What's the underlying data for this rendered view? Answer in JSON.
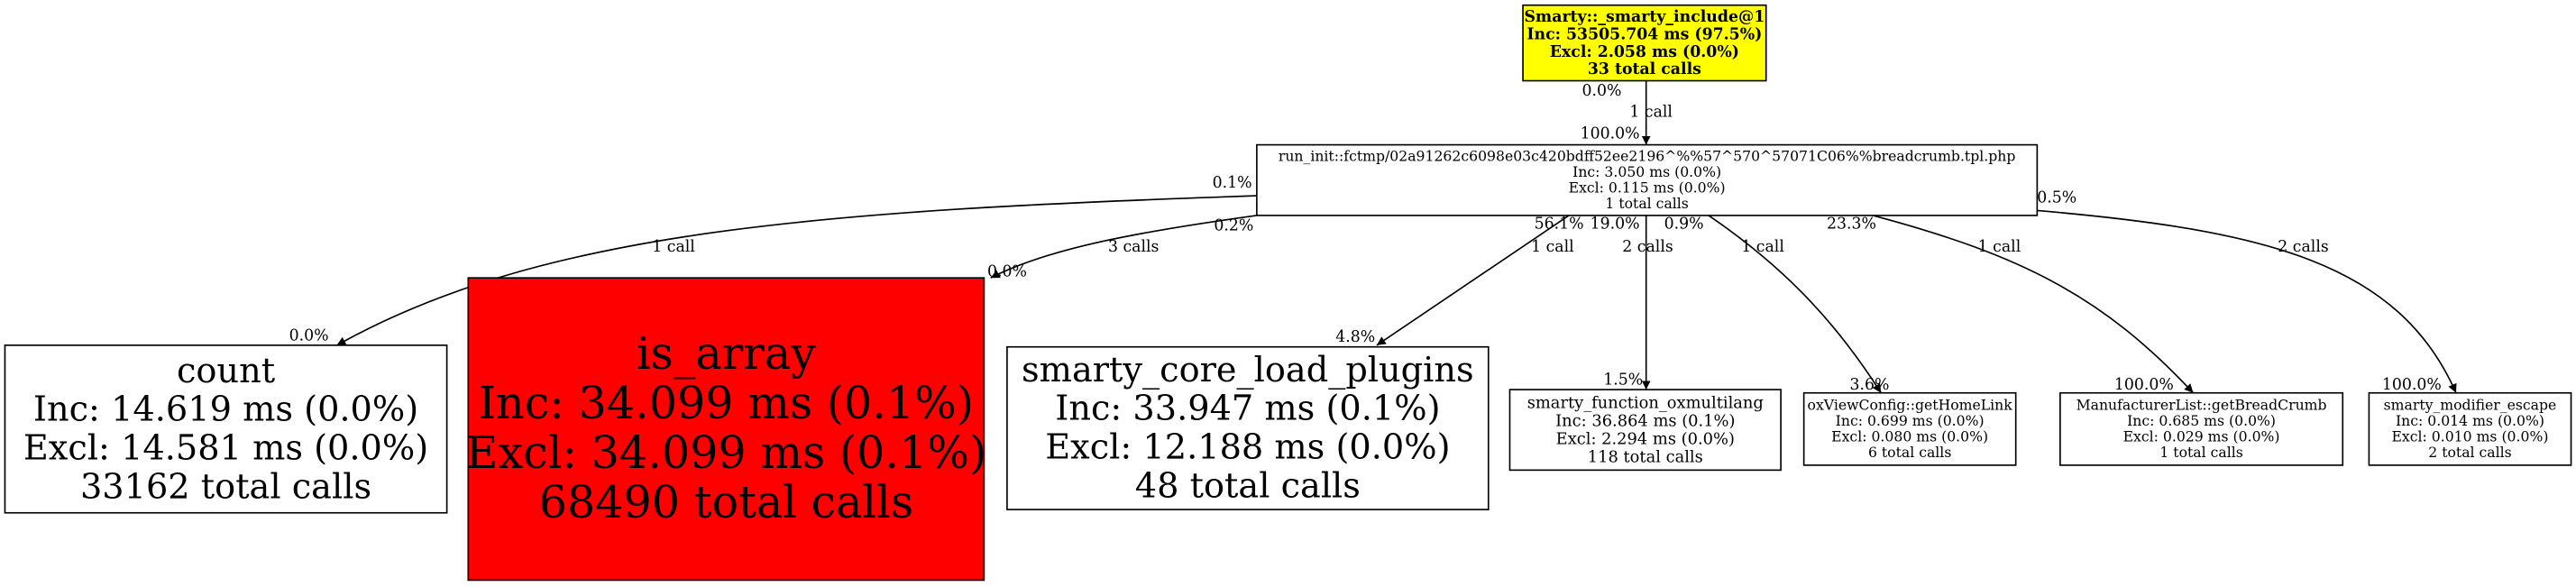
{
  "nodes": [
    {
      "id": "smarty-include",
      "lines": [
        "Smarty::_smarty_include@1",
        "Inc: 53505.704 ms (97.5%)",
        "Excl: 2.058 ms (0.0%)",
        "33 total calls"
      ],
      "fill": "#ffff00"
    },
    {
      "id": "run-init",
      "lines": [
        "run_init::fctmp/02a91262c6098e03c420bdff52ee2196^%%57^570^57071C06%%breadcrumb.tpl.php",
        "Inc: 3.050 ms (0.0%)",
        "Excl: 0.115 ms (0.0%)",
        "1 total calls"
      ],
      "fill": "#ffffff"
    },
    {
      "id": "count",
      "lines": [
        "count",
        "Inc: 14.619 ms (0.0%)",
        "Excl: 14.581 ms (0.0%)",
        "33162 total calls"
      ],
      "fill": "#ffffff"
    },
    {
      "id": "is-array",
      "lines": [
        "is_array",
        "Inc: 34.099 ms (0.1%)",
        "Excl: 34.099 ms (0.1%)",
        "68490 total calls"
      ],
      "fill": "#ff0000"
    },
    {
      "id": "smarty-core-load-plugins",
      "lines": [
        "smarty_core_load_plugins",
        "Inc: 33.947 ms (0.1%)",
        "Excl: 12.188 ms (0.0%)",
        "48 total calls"
      ],
      "fill": "#ffffff"
    },
    {
      "id": "smarty-function-oxmultilang",
      "lines": [
        "smarty_function_oxmultilang",
        "Inc: 36.864 ms (0.1%)",
        "Excl: 2.294 ms (0.0%)",
        "118 total calls"
      ],
      "fill": "#ffffff"
    },
    {
      "id": "oxviewconfig-gethomelink",
      "lines": [
        "oxViewConfig::getHomeLink",
        "Inc: 0.699 ms (0.0%)",
        "Excl: 0.080 ms (0.0%)",
        "6 total calls"
      ],
      "fill": "#ffffff"
    },
    {
      "id": "manufacturerlist-getbreadcrumb",
      "lines": [
        "ManufacturerList::getBreadCrumb",
        "Inc: 0.685 ms (0.0%)",
        "Excl: 0.029 ms (0.0%)",
        "1 total calls"
      ],
      "fill": "#ffffff"
    },
    {
      "id": "smarty-modifier-escape",
      "lines": [
        "smarty_modifier_escape",
        "Inc: 0.014 ms (0.0%)",
        "Excl: 0.010 ms (0.0%)",
        "2 total calls"
      ],
      "fill": "#ffffff"
    }
  ],
  "edges": [
    {
      "from": "smarty-include",
      "to": "run-init",
      "tail": "0.0%",
      "label": "1 call",
      "head": "100.0%"
    },
    {
      "from": "run-init",
      "to": "count",
      "tail": "0.1%",
      "label": "1 call",
      "head": "0.0%"
    },
    {
      "from": "run-init",
      "to": "is-array",
      "tail": "0.2%",
      "label": "3 calls",
      "head": "0.0%"
    },
    {
      "from": "run-init",
      "to": "smarty-core-load-plugins",
      "tail": "56.1%",
      "label": "1 call",
      "head": "4.8%"
    },
    {
      "from": "run-init",
      "to": "smarty-function-oxmultilang",
      "tail": "19.0%",
      "label": "2 calls",
      "head": "1.5%"
    },
    {
      "from": "run-init",
      "to": "oxviewconfig-gethomelink",
      "tail": "0.9%",
      "label": "1 call",
      "head": "3.6%"
    },
    {
      "from": "run-init",
      "to": "manufacturerlist-getbreadcrumb",
      "tail": "23.3%",
      "label": "1 call",
      "head": "100.0%"
    },
    {
      "from": "run-init",
      "to": "smarty-modifier-escape",
      "tail": "0.5%",
      "label": "2 calls",
      "head": "100.0%"
    }
  ]
}
